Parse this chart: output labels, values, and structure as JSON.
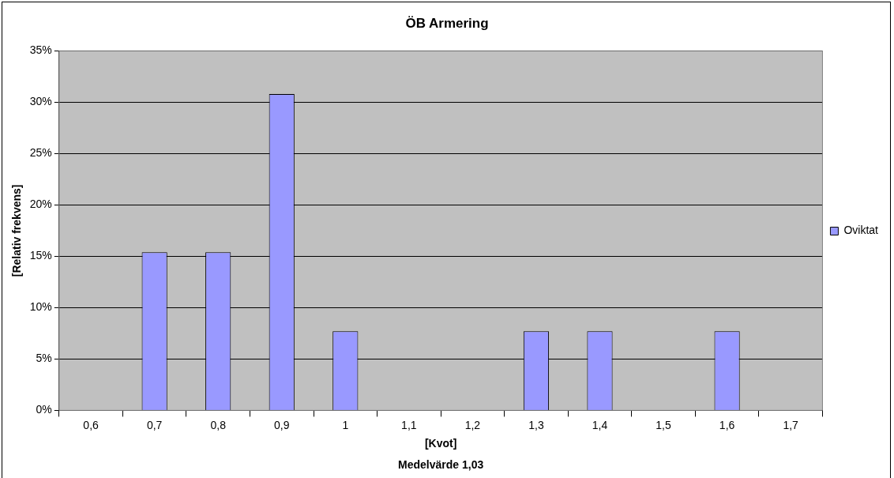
{
  "chart_data": {
    "type": "bar",
    "title": "ÖB Armering",
    "xlabel": "[Kvot]",
    "ylabel": "[Relativ frekvens]",
    "annotations": [
      "Medelvärde 1,03"
    ],
    "categories": [
      "0,6",
      "0,7",
      "0,8",
      "0,9",
      "1",
      "1,1",
      "1,2",
      "1,3",
      "1,4",
      "1,5",
      "1,6",
      "1,7"
    ],
    "series": [
      {
        "name": "Oviktat",
        "color": "#9999ff",
        "values": [
          0,
          15.4,
          15.4,
          30.8,
          7.7,
          0,
          0,
          7.7,
          7.7,
          0,
          7.7,
          0
        ]
      }
    ],
    "ylim": [
      0,
      35
    ],
    "yticks": [
      {
        "value": 0,
        "label": "0%"
      },
      {
        "value": 5,
        "label": "5%"
      },
      {
        "value": 10,
        "label": "10%"
      },
      {
        "value": 15,
        "label": "15%"
      },
      {
        "value": 20,
        "label": "20%"
      },
      {
        "value": 25,
        "label": "25%"
      },
      {
        "value": 30,
        "label": "30%"
      },
      {
        "value": 35,
        "label": "35%"
      }
    ],
    "grid": "y",
    "legend": "right"
  }
}
